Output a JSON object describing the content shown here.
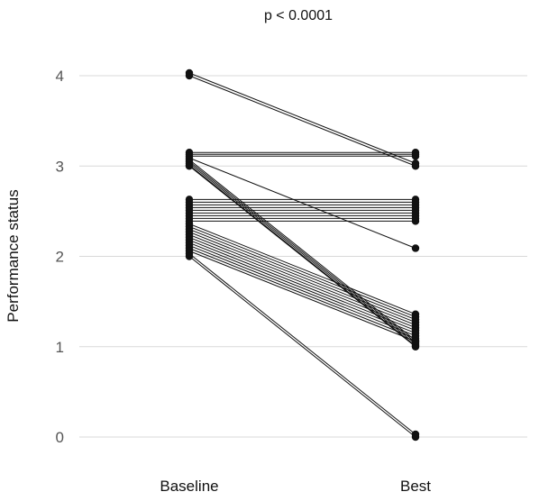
{
  "chart_data": {
    "type": "line",
    "title": "p < 0.0001",
    "xlabel": "",
    "ylabel": "Performance status",
    "categories": [
      "Baseline",
      "Best"
    ],
    "ylim": [
      -0.15,
      4.3
    ],
    "yticks": [
      0,
      1,
      2,
      3,
      4
    ],
    "grid": true,
    "legend": "none",
    "pairs": [
      [
        4.03,
        3.03
      ],
      [
        4.0,
        3.0
      ],
      [
        3.15,
        3.15
      ],
      [
        3.13,
        3.13
      ],
      [
        3.11,
        3.11
      ],
      [
        3.09,
        2.09
      ],
      [
        3.07,
        1.07
      ],
      [
        3.05,
        1.05
      ],
      [
        3.03,
        1.03
      ],
      [
        3.01,
        1.01
      ],
      [
        3.0,
        1.0
      ],
      [
        2.63,
        2.63
      ],
      [
        2.6,
        2.6
      ],
      [
        2.57,
        2.57
      ],
      [
        2.54,
        2.54
      ],
      [
        2.51,
        2.51
      ],
      [
        2.48,
        2.48
      ],
      [
        2.45,
        2.45
      ],
      [
        2.42,
        2.42
      ],
      [
        2.39,
        2.39
      ],
      [
        2.36,
        1.36
      ],
      [
        2.33,
        1.33
      ],
      [
        2.3,
        1.3
      ],
      [
        2.27,
        1.27
      ],
      [
        2.24,
        1.24
      ],
      [
        2.21,
        1.21
      ],
      [
        2.18,
        1.18
      ],
      [
        2.15,
        1.15
      ],
      [
        2.12,
        1.12
      ],
      [
        2.09,
        1.09
      ],
      [
        2.06,
        1.06
      ],
      [
        2.03,
        0.03
      ],
      [
        2.0,
        0.0
      ]
    ]
  }
}
